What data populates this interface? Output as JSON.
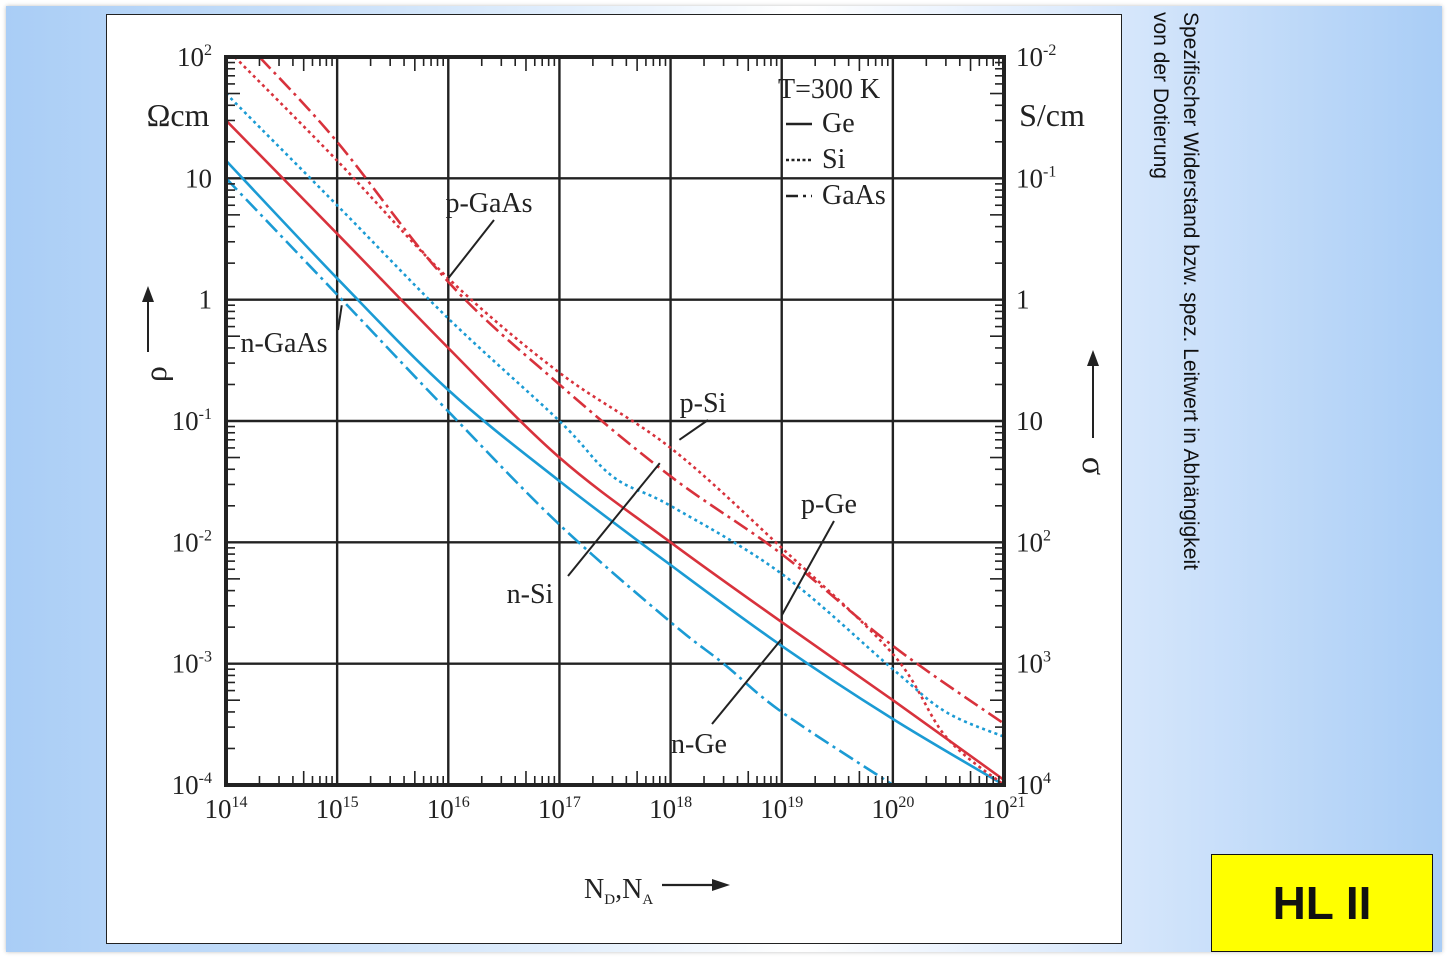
{
  "caption": "Spezifischer Widerstand bzw. spez. Leitwert in Abhängigkeit von der Dotierung",
  "badge": "HL II",
  "chart_data": {
    "type": "line",
    "x_scale": "log",
    "y_scale": "log",
    "xlim": [
      100000000000000.0,
      1e+21
    ],
    "ylim": [
      0.0001,
      100
    ],
    "grid": true,
    "x_ticks": [
      {
        "value": 100000000000000.0,
        "base": "10",
        "exp": "14"
      },
      {
        "value": 1000000000000000.0,
        "base": "10",
        "exp": "15"
      },
      {
        "value": 1e+16,
        "base": "10",
        "exp": "16"
      },
      {
        "value": 1e+17,
        "base": "10",
        "exp": "17"
      },
      {
        "value": 1e+18,
        "base": "10",
        "exp": "18"
      },
      {
        "value": 1e+19,
        "base": "10",
        "exp": "19"
      },
      {
        "value": 1e+20,
        "base": "10",
        "exp": "20"
      },
      {
        "value": 1e+21,
        "base": "10",
        "exp": "21"
      }
    ],
    "y_ticks_left": [
      {
        "value": 100,
        "base": "10",
        "exp": "2"
      },
      {
        "value": 10,
        "base": "10",
        "exp": ""
      },
      {
        "value": 1,
        "base": "1",
        "exp": ""
      },
      {
        "value": 0.1,
        "base": "10",
        "exp": "-1"
      },
      {
        "value": 0.01,
        "base": "10",
        "exp": "-2"
      },
      {
        "value": 0.001,
        "base": "10",
        "exp": "-3"
      },
      {
        "value": 0.0001,
        "base": "10",
        "exp": "-4"
      }
    ],
    "y_ticks_right": [
      {
        "value": 100,
        "base": "10",
        "exp": "-2"
      },
      {
        "value": 10,
        "base": "10",
        "exp": "-1"
      },
      {
        "value": 1,
        "base": "1",
        "exp": ""
      },
      {
        "value": 0.1,
        "base": "10",
        "exp": ""
      },
      {
        "value": 0.01,
        "base": "10",
        "exp": "2"
      },
      {
        "value": 0.001,
        "base": "10",
        "exp": "3"
      },
      {
        "value": 0.0001,
        "base": "10",
        "exp": "4"
      }
    ],
    "ylabel_left_unit": "Ωcm",
    "ylabel_right_unit": "S/cm",
    "ylabel_left_symbol": "ρ",
    "ylabel_right_symbol": "σ",
    "xlabel": {
      "main": "N",
      "sub1": "D",
      "sep": ",N",
      "sub2": "A"
    },
    "legend": {
      "title": "T=300 K",
      "position": "top-right",
      "entries": [
        {
          "label": "Ge",
          "style": "solid"
        },
        {
          "label": "Si",
          "style": "dotted"
        },
        {
          "label": "GaAs",
          "style": "dashdot"
        }
      ]
    },
    "colors": {
      "p": "#d8323c",
      "n": "#1b9bd4",
      "grid": "#222222"
    },
    "series": [
      {
        "name": "p-Ge",
        "carrier": "p",
        "style": "solid",
        "points": [
          [
            100000000000000.0,
            30
          ],
          [
            1000000000000000.0,
            3.5
          ],
          [
            1e+16,
            0.4
          ],
          [
            1e+17,
            0.05
          ],
          [
            1e+18,
            0.01
          ],
          [
            1e+19,
            0.0022
          ],
          [
            1e+20,
            0.0005
          ],
          [
            1e+21,
            0.00011
          ]
        ]
      },
      {
        "name": "n-Ge",
        "carrier": "n",
        "style": "solid",
        "points": [
          [
            100000000000000.0,
            14
          ],
          [
            1000000000000000.0,
            1.5
          ],
          [
            1e+16,
            0.18
          ],
          [
            1e+17,
            0.032
          ],
          [
            1e+18,
            0.0065
          ],
          [
            1e+19,
            0.0014
          ],
          [
            1e+20,
            0.00035
          ],
          [
            1e+21,
            0.0001
          ]
        ]
      },
      {
        "name": "p-Si",
        "carrier": "p",
        "style": "dotted",
        "points": [
          [
            120000000000000.0,
            100
          ],
          [
            1000000000000000.0,
            14
          ],
          [
            1e+16,
            1.5
          ],
          [
            1e+17,
            0.25
          ],
          [
            1e+18,
            0.06
          ],
          [
            1e+19,
            0.009
          ],
          [
            1e+20,
            0.0012
          ],
          [
            3e+20,
            0.00025
          ],
          [
            1e+21,
            0.0001
          ]
        ]
      },
      {
        "name": "n-Si",
        "carrier": "n",
        "style": "dotted",
        "points": [
          [
            100000000000000.0,
            50
          ],
          [
            1000000000000000.0,
            6
          ],
          [
            1e+16,
            0.7
          ],
          [
            1e+17,
            0.1
          ],
          [
            3e+17,
            0.035
          ],
          [
            1e+18,
            0.02
          ],
          [
            1e+19,
            0.0055
          ],
          [
            1e+20,
            0.0009
          ],
          [
            3e+20,
            0.0004
          ],
          [
            1e+21,
            0.00025
          ]
        ]
      },
      {
        "name": "p-GaAs",
        "carrier": "p",
        "style": "dashdot",
        "points": [
          [
            200000000000000.0,
            100
          ],
          [
            1000000000000000.0,
            20
          ],
          [
            1e+16,
            1.4
          ],
          [
            1e+17,
            0.2
          ],
          [
            1e+18,
            0.035
          ],
          [
            1e+19,
            0.008
          ],
          [
            1e+20,
            0.0014
          ],
          [
            1e+21,
            0.00032
          ]
        ]
      },
      {
        "name": "n-GaAs",
        "carrier": "n",
        "style": "dashdot",
        "points": [
          [
            100000000000000.0,
            10
          ],
          [
            1000000000000000.0,
            1.1
          ],
          [
            1e+16,
            0.12
          ],
          [
            1e+17,
            0.014
          ],
          [
            1e+18,
            0.0022
          ],
          [
            3e+18,
            0.001
          ],
          [
            1e+19,
            0.0004
          ],
          [
            1e+20,
            0.0001
          ]
        ]
      }
    ],
    "annotations": [
      {
        "label": "p-GaAs",
        "point_x": 1e+16,
        "point_y": 1.5
      },
      {
        "label": "n-GaAs",
        "point_x": 1100000000000000.0,
        "point_y": 0.9
      },
      {
        "label": "p-Si",
        "point_x": 1.2e+18,
        "point_y": 0.07
      },
      {
        "label": "n-Si",
        "point_x": 8e+17,
        "point_y": 0.045
      },
      {
        "label": "p-Ge",
        "point_x": 1e+19,
        "point_y": 0.0025
      },
      {
        "label": "n-Ge",
        "point_x": 1e+19,
        "point_y": 0.0016
      }
    ]
  }
}
